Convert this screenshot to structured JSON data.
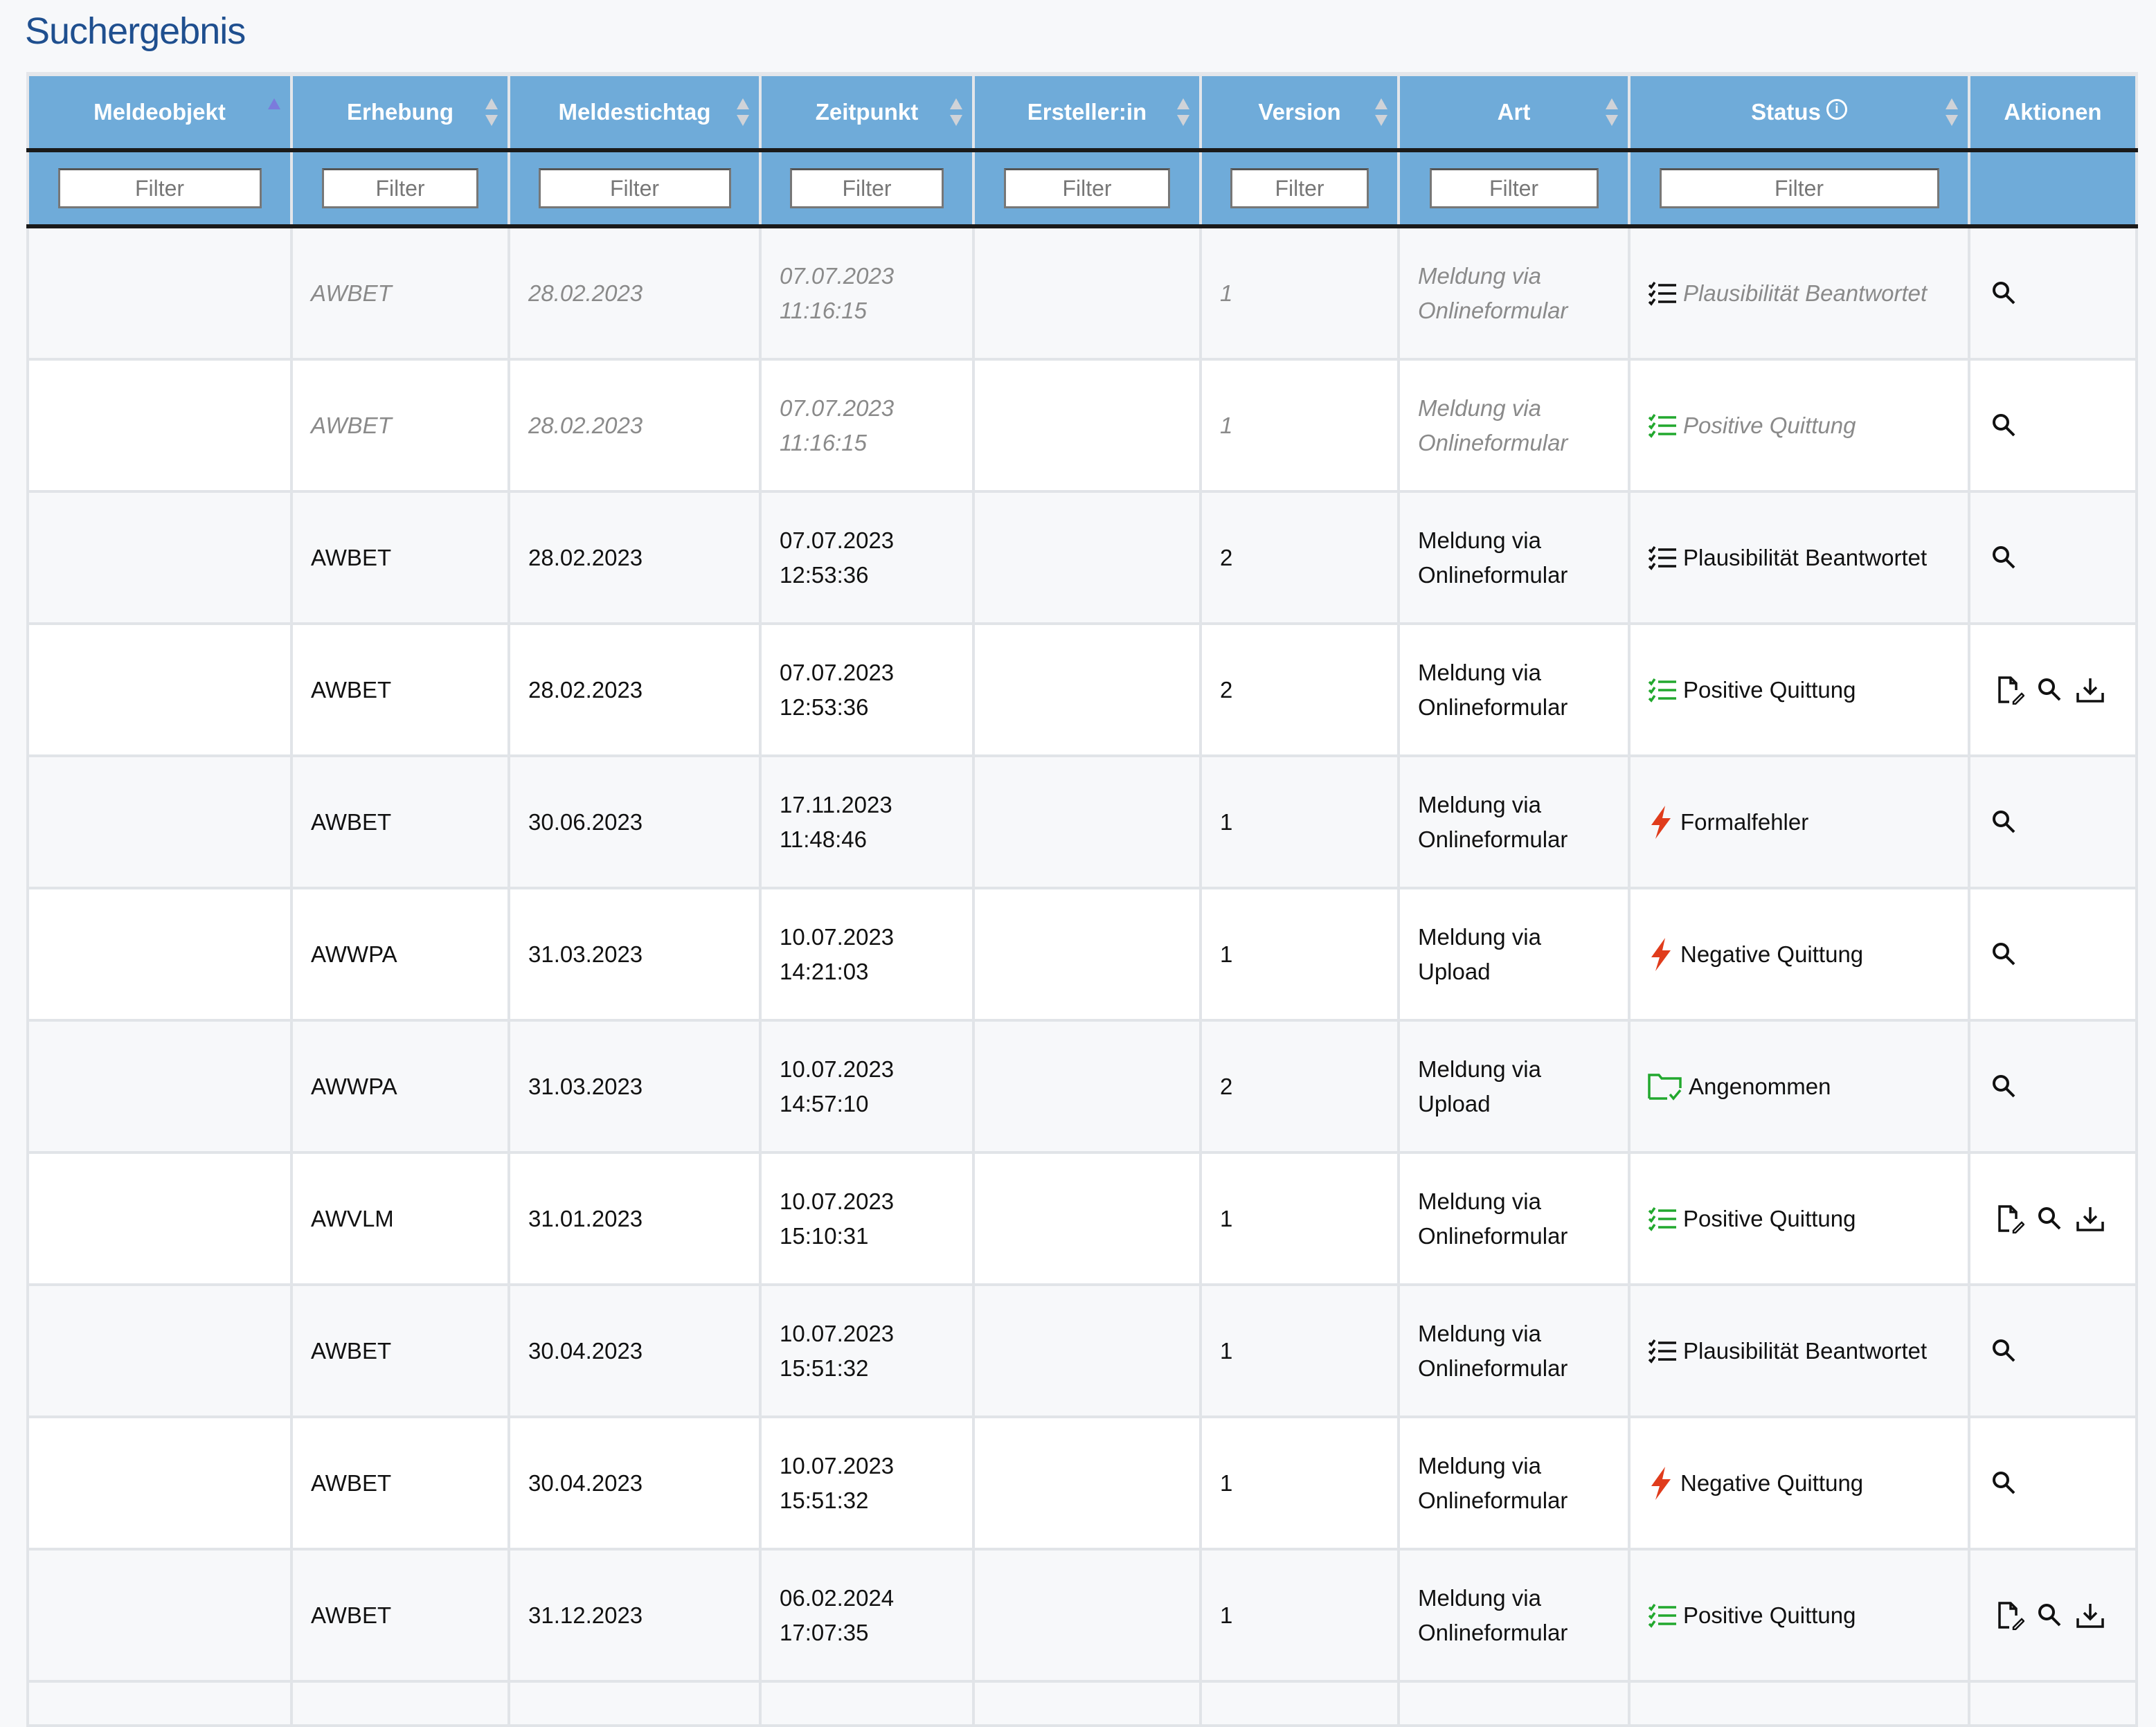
{
  "page": {
    "title": "Suchergebnis"
  },
  "colors": {
    "header_bg": "#6fabd9",
    "title": "#1f4f8f",
    "ok_green": "#22a82e",
    "error_red": "#e03c1c"
  },
  "table": {
    "columns": [
      {
        "label": "Meldeobjekt",
        "sort": "asc",
        "filter_placeholder": "Filter"
      },
      {
        "label": "Erhebung",
        "sort": "none",
        "filter_placeholder": "Filter"
      },
      {
        "label": "Meldestichtag",
        "sort": "none",
        "filter_placeholder": "Filter"
      },
      {
        "label": "Zeitpunkt",
        "sort": "none",
        "filter_placeholder": "Filter"
      },
      {
        "label": "Ersteller:in",
        "sort": "none",
        "filter_placeholder": "Filter"
      },
      {
        "label": "Version",
        "sort": "none",
        "filter_placeholder": "Filter"
      },
      {
        "label": "Art",
        "sort": "none",
        "filter_placeholder": "Filter"
      },
      {
        "label": "Status",
        "sort": "none",
        "filter_placeholder": "Filter",
        "info_icon": "info-circle-icon"
      },
      {
        "label": "Aktionen"
      }
    ],
    "rows": [
      {
        "meldeobjekt": "",
        "erhebung": "AWBET",
        "stichtag": "28.02.2023",
        "datum": "07.07.2023",
        "zeit": "11:16:15",
        "ersteller": "",
        "version": "1",
        "art1": "Meldung via",
        "art2": "Onlineformular",
        "status": "Plausibilität Beantwortet",
        "status_icon": "checklist-black",
        "actions": [
          "search"
        ],
        "faded": true
      },
      {
        "meldeobjekt": "",
        "erhebung": "AWBET",
        "stichtag": "28.02.2023",
        "datum": "07.07.2023",
        "zeit": "11:16:15",
        "ersteller": "",
        "version": "1",
        "art1": "Meldung via",
        "art2": "Onlineformular",
        "status": "Positive Quittung",
        "status_icon": "checklist-green",
        "actions": [
          "search"
        ],
        "faded": true
      },
      {
        "meldeobjekt": "",
        "erhebung": "AWBET",
        "stichtag": "28.02.2023",
        "datum": "07.07.2023",
        "zeit": "12:53:36",
        "ersteller": "",
        "version": "2",
        "art1": "Meldung via",
        "art2": "Onlineformular",
        "status": "Plausibilität Beantwortet",
        "status_icon": "checklist-black",
        "actions": [
          "search"
        ]
      },
      {
        "meldeobjekt": "",
        "erhebung": "AWBET",
        "stichtag": "28.02.2023",
        "datum": "07.07.2023",
        "zeit": "12:53:36",
        "ersteller": "",
        "version": "2",
        "art1": "Meldung via",
        "art2": "Onlineformular",
        "status": "Positive Quittung",
        "status_icon": "checklist-green",
        "actions": [
          "edit-document",
          "search",
          "download"
        ]
      },
      {
        "meldeobjekt": "",
        "erhebung": "AWBET",
        "stichtag": "30.06.2023",
        "datum": "17.11.2023",
        "zeit": "11:48:46",
        "ersteller": "",
        "version": "1",
        "art1": "Meldung via",
        "art2": "Onlineformular",
        "status": "Formalfehler",
        "status_icon": "lightning-red",
        "actions": [
          "search"
        ]
      },
      {
        "meldeobjekt": "",
        "erhebung": "AWWPA",
        "stichtag": "31.03.2023",
        "datum": "10.07.2023",
        "zeit": "14:21:03",
        "ersteller": "",
        "version": "1",
        "art1": "Meldung via",
        "art2": "Upload",
        "status": "Negative Quittung",
        "status_icon": "lightning-red",
        "actions": [
          "search"
        ]
      },
      {
        "meldeobjekt": "",
        "erhebung": "AWWPA",
        "stichtag": "31.03.2023",
        "datum": "10.07.2023",
        "zeit": "14:57:10",
        "ersteller": "",
        "version": "2",
        "art1": "Meldung via",
        "art2": "Upload",
        "status": "Angenommen",
        "status_icon": "folder-check-green",
        "actions": [
          "search"
        ]
      },
      {
        "meldeobjekt": "",
        "erhebung": "AWVLM",
        "stichtag": "31.01.2023",
        "datum": "10.07.2023",
        "zeit": "15:10:31",
        "ersteller": "",
        "version": "1",
        "art1": "Meldung via",
        "art2": "Onlineformular",
        "status": "Positive Quittung",
        "status_icon": "checklist-green",
        "actions": [
          "edit-document",
          "search",
          "download"
        ]
      },
      {
        "meldeobjekt": "",
        "erhebung": "AWBET",
        "stichtag": "30.04.2023",
        "datum": "10.07.2023",
        "zeit": "15:51:32",
        "ersteller": "",
        "version": "1",
        "art1": "Meldung via",
        "art2": "Onlineformular",
        "status": "Plausibilität Beantwortet",
        "status_icon": "checklist-black",
        "actions": [
          "search"
        ]
      },
      {
        "meldeobjekt": "",
        "erhebung": "AWBET",
        "stichtag": "30.04.2023",
        "datum": "10.07.2023",
        "zeit": "15:51:32",
        "ersteller": "",
        "version": "1",
        "art1": "Meldung via",
        "art2": "Onlineformular",
        "status": "Negative Quittung",
        "status_icon": "lightning-red",
        "actions": [
          "search"
        ]
      },
      {
        "meldeobjekt": "",
        "erhebung": "AWBET",
        "stichtag": "31.12.2023",
        "datum": "06.02.2024",
        "zeit": "17:07:35",
        "ersteller": "",
        "version": "1",
        "art1": "Meldung via",
        "art2": "Onlineformular",
        "status": "Positive Quittung",
        "status_icon": "checklist-green",
        "actions": [
          "edit-document",
          "search",
          "download"
        ]
      }
    ]
  }
}
